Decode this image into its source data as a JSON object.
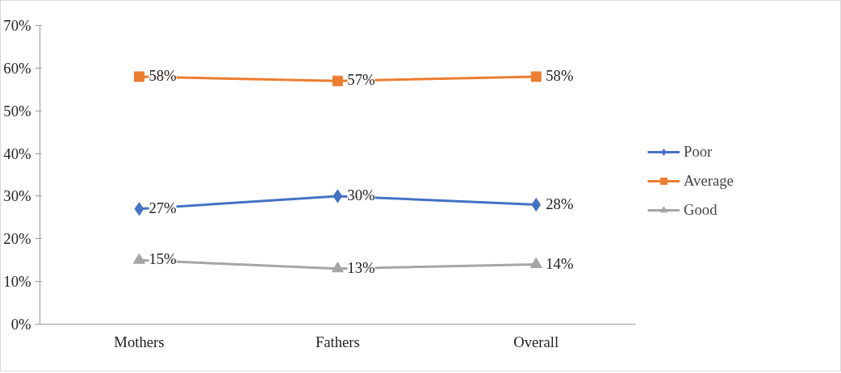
{
  "chart_data": {
    "type": "line",
    "categories": [
      "Mothers",
      "Fathers",
      "Overall"
    ],
    "series": [
      {
        "name": "Poor",
        "color": "#4472c4",
        "marker": "diamond",
        "values": [
          27,
          30,
          28
        ],
        "value_labels": [
          "27%",
          "30%",
          "28%"
        ]
      },
      {
        "name": "Average",
        "color": "#ed7d31",
        "marker": "square",
        "values": [
          58,
          57,
          58
        ],
        "value_labels": [
          "58%",
          "57%",
          "58%"
        ]
      },
      {
        "name": "Good",
        "color": "#a5a5a5",
        "marker": "triangle",
        "values": [
          15,
          13,
          14
        ],
        "value_labels": [
          "15%",
          "13%",
          "14%"
        ]
      }
    ],
    "ylim": [
      0,
      70
    ],
    "yticks": [
      {
        "value": 0,
        "label": "0%"
      },
      {
        "value": 10,
        "label": "10%"
      },
      {
        "value": 20,
        "label": "20%"
      },
      {
        "value": 30,
        "label": "30%"
      },
      {
        "value": 40,
        "label": "40%"
      },
      {
        "value": 50,
        "label": "50%"
      },
      {
        "value": 60,
        "label": "60%"
      },
      {
        "value": 70,
        "label": "70%"
      }
    ],
    "grid": false,
    "legend": "right",
    "line_style": "solid"
  }
}
